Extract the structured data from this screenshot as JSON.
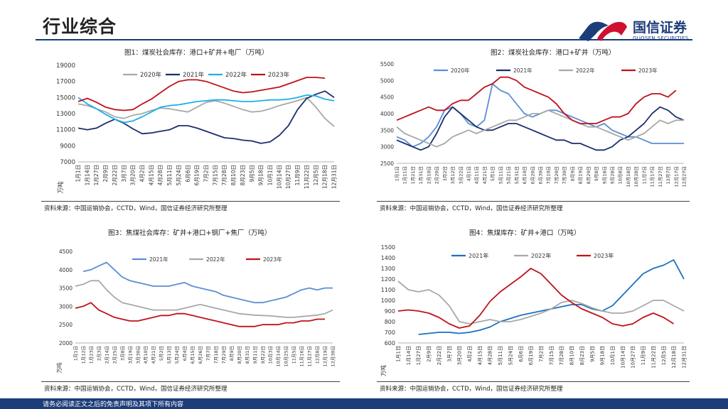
{
  "header": {
    "title": "行业综合"
  },
  "logo": {
    "name_cn": "国信证券",
    "name_en": "GUOSEN SECURITIES"
  },
  "footer": {
    "disclaimer": "请务必阅读正文之后的免责声明及其项下所有内容"
  },
  "colors": {
    "brand_navy": "#1d3d7a",
    "brand_red": "#d0102f",
    "gray": "#a8a8a8",
    "navy": "#1b2f6e",
    "cyan": "#1cb0e8",
    "red": "#c0121c",
    "blue": "#5b8ed6"
  },
  "charts": [
    {
      "caption": "图1：煤炭社会库存：港口+矿井+电厂（万吨）",
      "source": "资料来源：中国运销协会，CCTD，Wind，国信证券经济研究所整理",
      "chart_data": {
        "type": "line",
        "title": "图1：煤炭社会库存：港口+矿井+电厂（万吨）",
        "ylabel": "万吨",
        "ylim": [
          7000,
          19000
        ],
        "yticks": [
          7000,
          9000,
          11000,
          13000,
          15000,
          17000,
          19000
        ],
        "categories": [
          "1月1日",
          "1月14日",
          "1月27日",
          "2月9日",
          "2月22日",
          "3月7日",
          "3月20日",
          "4月2日",
          "4月15日",
          "4月28日",
          "5月11日",
          "5月24日",
          "6月6日",
          "6月19日",
          "7月2日",
          "7月15日",
          "7月28日",
          "8月10日",
          "8月23日",
          "9月5日",
          "9月18日",
          "10月1日",
          "10月14日",
          "10月27日",
          "11月9日",
          "11月22日",
          "12月5日",
          "12月18日",
          "12月31日"
        ],
        "series": [
          {
            "name": "2020年",
            "color": "#a8a8a8",
            "values": [
              14200,
              14000,
              13600,
              13200,
              12600,
              12400,
              12800,
              13000,
              13400,
              13700,
              13600,
              13400,
              13200,
              13800,
              14400,
              14600,
              14300,
              13900,
              13500,
              13200,
              13300,
              13600,
              14000,
              14300,
              14600,
              15000,
              13800,
              12400,
              11400
            ]
          },
          {
            "name": "2021年",
            "color": "#1b2f6e",
            "values": [
              11200,
              11000,
              11200,
              11800,
              12300,
              11800,
              11100,
              10500,
              10600,
              10800,
              11000,
              11500,
              11500,
              11200,
              10800,
              10400,
              10000,
              9900,
              9700,
              9600,
              9300,
              9500,
              10300,
              11500,
              13500,
              14900,
              15400,
              15800,
              15000
            ]
          },
          {
            "name": "2022年",
            "color": "#1cb0e8",
            "values": [
              15000,
              14200,
              13600,
              12900,
              12300,
              11900,
              12100,
              12600,
              13200,
              13800,
              14000,
              14100,
              14300,
              14500,
              14600,
              14700,
              14700,
              14600,
              14500,
              14500,
              14600,
              14700,
              14700,
              14800,
              15000,
              15300,
              15200,
              14800,
              14600
            ]
          },
          {
            "name": "2023年",
            "color": "#c0121c",
            "values": [
              14500,
              14900,
              14400,
              13800,
              13500,
              13400,
              13500,
              14200,
              14800,
              15600,
              16400,
              17000,
              17200,
              17200,
              17000,
              16600,
              16200,
              15800,
              15600,
              15700,
              15900,
              16100,
              16300,
              16700,
              17100,
              17500,
              17500,
              17400,
              null
            ]
          }
        ]
      }
    },
    {
      "caption": "图2：煤炭社会库存：港口+矿井（万吨）",
      "source": "资料来源：中国运销协会，CCTD，Wind，国信证券经济研究所整理",
      "chart_data": {
        "type": "line",
        "title": "图2：煤炭社会库存：港口+矿井（万吨）",
        "ylim": [
          2500,
          5500
        ],
        "yticks": [
          2500,
          3000,
          3500,
          4000,
          4500,
          5000,
          5500
        ],
        "categories": [
          "1月1日",
          "1月11日",
          "1月21日",
          "1月31日",
          "2月10日",
          "2月20日",
          "3月2日",
          "3月12日",
          "3月22日",
          "4月1日",
          "4月11日",
          "4月21日",
          "5月1日",
          "5月11日",
          "5月21日",
          "5月31日",
          "6月10日",
          "6月20日",
          "6月30日",
          "7月10日",
          "7月20日",
          "7月30日",
          "8月9日",
          "8月19日",
          "8月29日",
          "9月8日",
          "9月18日",
          "9月28日",
          "10月8日",
          "10月18日",
          "10月28日",
          "11月7日",
          "11月17日",
          "11月27日",
          "12月7日",
          "12月17日",
          "12月27日"
        ],
        "series": [
          {
            "name": "2020年",
            "color": "#5b8ed6",
            "values": [
              3300,
              3200,
              3000,
              3100,
              3300,
              3600,
              4100,
              4200,
              4000,
              3700,
              3600,
              3800,
              4900,
              4700,
              4600,
              4300,
              4000,
              3900,
              4000,
              4100,
              4100,
              4000,
              3900,
              3800,
              3700,
              3600,
              3700,
              3500,
              3400,
              3300,
              3300,
              3200,
              3100,
              3100,
              3100,
              3100,
              3100
            ]
          },
          {
            "name": "2021年",
            "color": "#1b2f6e",
            "values": [
              3200,
              3100,
              3000,
              2900,
              3000,
              3400,
              3900,
              4200,
              4000,
              3800,
              3600,
              3500,
              3500,
              3600,
              3700,
              3700,
              3600,
              3500,
              3400,
              3300,
              3200,
              3200,
              3100,
              3100,
              3000,
              2900,
              2900,
              3000,
              3200,
              3300,
              3500,
              3700,
              4000,
              4200,
              4100,
              3900,
              3800
            ]
          },
          {
            "name": "2022年",
            "color": "#a8a8a8",
            "values": [
              3600,
              3400,
              3300,
              3200,
              3100,
              3000,
              3100,
              3300,
              3400,
              3500,
              3400,
              3500,
              3600,
              3700,
              3800,
              3800,
              3900,
              4000,
              4000,
              4100,
              4000,
              3900,
              3800,
              3700,
              3600,
              3600,
              3500,
              3400,
              3300,
              3200,
              3300,
              3400,
              3600,
              3800,
              3700,
              3800,
              3800
            ]
          },
          {
            "name": "2023年",
            "color": "#c0121c",
            "values": [
              3800,
              3900,
              4000,
              4100,
              4200,
              4100,
              4100,
              4300,
              4400,
              4400,
              4600,
              4800,
              4900,
              5100,
              5100,
              5000,
              4800,
              4700,
              4600,
              4500,
              4300,
              4000,
              3800,
              3700,
              3700,
              3700,
              3800,
              3900,
              3900,
              4000,
              4300,
              4500,
              4600,
              4600,
              4500,
              4700,
              null
            ]
          }
        ]
      }
    },
    {
      "caption": "图3：焦煤社会库存：矿井+港口+钢厂+焦厂（万吨）",
      "source": "资料来源：中国运销协会，CCTD，Wind，国信证券经济研究所整理",
      "chart_data": {
        "type": "line",
        "title": "图3：焦煤社会库存：矿井+港口+钢厂+焦厂（万吨）",
        "ylabel": "万吨",
        "ylim": [
          2000,
          4500
        ],
        "yticks": [
          2000,
          2500,
          3000,
          3500,
          4000,
          4500
        ],
        "categories": [
          "1月1日",
          "1月12日",
          "1月23日",
          "2月3日",
          "2月14日",
          "2月25日",
          "3月8日",
          "3月19日",
          "3月30日",
          "4月10日",
          "4月21日",
          "5月2日",
          "5月13日",
          "5月24日",
          "6月4日",
          "6月15日",
          "6月26日",
          "7月7日",
          "7月18日",
          "7月29日",
          "8月9日",
          "8月20日",
          "8月31日",
          "9月11日",
          "9月22日",
          "10月3日",
          "10月14日",
          "10月25日",
          "11月5日",
          "11月16日",
          "11月27日",
          "12月8日",
          "12月19日",
          "12月30日"
        ],
        "series": [
          {
            "name": "2021年",
            "color": "#5b8ed6",
            "values": [
              null,
              3950,
              4000,
              4100,
              4200,
              4000,
              3800,
              3700,
              3650,
              3600,
              3550,
              3550,
              3550,
              3600,
              3650,
              3550,
              3500,
              3450,
              3400,
              3300,
              3250,
              3200,
              3150,
              3100,
              3100,
              3150,
              3200,
              3250,
              3350,
              3450,
              3500,
              3450,
              3500,
              3500
            ]
          },
          {
            "name": "2022年",
            "color": "#a8a8a8",
            "values": [
              3550,
              3600,
              3700,
              3700,
              3450,
              3250,
              3100,
              3050,
              3000,
              2950,
              2900,
              2900,
              2900,
              2900,
              2950,
              3000,
              3050,
              3000,
              2950,
              2900,
              2850,
              2800,
              2780,
              2760,
              2750,
              2740,
              2720,
              2700,
              2700,
              2720,
              2740,
              2760,
              2800,
              2900
            ]
          },
          {
            "name": "2023年",
            "color": "#c0121c",
            "values": [
              2950,
              3000,
              3100,
              2900,
              2800,
              2700,
              2650,
              2600,
              2600,
              2650,
              2700,
              2750,
              2750,
              2800,
              2800,
              2750,
              2700,
              2650,
              2600,
              2550,
              2500,
              2450,
              2450,
              2450,
              2500,
              2500,
              2500,
              2550,
              2550,
              2600,
              2600,
              2650,
              2650,
              null
            ]
          }
        ]
      }
    },
    {
      "caption": "图4：焦煤库存：矿井+港口（万吨）",
      "source": "资料来源：中国运销协会，CCTD，Wind，国信证券经济研究所整理",
      "chart_data": {
        "type": "line",
        "title": "图4：焦煤库存：矿井+港口（万吨）",
        "ylabel": "万吨",
        "ylim": [
          600,
          1500
        ],
        "yticks": [
          600,
          700,
          800,
          900,
          1000,
          1100,
          1200,
          1300,
          1400,
          1500
        ],
        "categories": [
          "1月1日",
          "1月14日",
          "1月27日",
          "2月9日",
          "2月22日",
          "3月7日",
          "3月20日",
          "4月2日",
          "4月15日",
          "4月28日",
          "5月11日",
          "5月24日",
          "6月6日",
          "6月19日",
          "7月2日",
          "7月15日",
          "7月28日",
          "8月10日",
          "8月23日",
          "9月5日",
          "9月18日",
          "10月1日",
          "10月14日",
          "10月27日",
          "11月9日",
          "11月22日",
          "12月5日",
          "12月18日",
          "12月31日"
        ],
        "series": [
          {
            "name": "2021年",
            "color": "#1e6fc0",
            "values": [
              null,
              null,
              680,
              690,
              700,
              700,
              690,
              700,
              720,
              750,
              800,
              830,
              860,
              880,
              900,
              920,
              940,
              960,
              960,
              920,
              900,
              950,
              1050,
              1150,
              1250,
              1300,
              1330,
              1380,
              1200
            ]
          },
          {
            "name": "2022年",
            "color": "#a8a8a8",
            "values": [
              1180,
              1100,
              1080,
              1100,
              1050,
              950,
              800,
              780,
              800,
              820,
              800,
              800,
              820,
              850,
              880,
              920,
              980,
              1000,
              970,
              930,
              900,
              880,
              880,
              900,
              950,
              1000,
              1000,
              950,
              900
            ]
          },
          {
            "name": "2023年",
            "color": "#c0121c",
            "values": [
              900,
              910,
              900,
              880,
              840,
              780,
              740,
              760,
              860,
              990,
              1080,
              1150,
              1220,
              1300,
              1250,
              1150,
              1050,
              980,
              920,
              880,
              840,
              780,
              760,
              780,
              840,
              880,
              840,
              780,
              null
            ]
          }
        ]
      }
    }
  ]
}
